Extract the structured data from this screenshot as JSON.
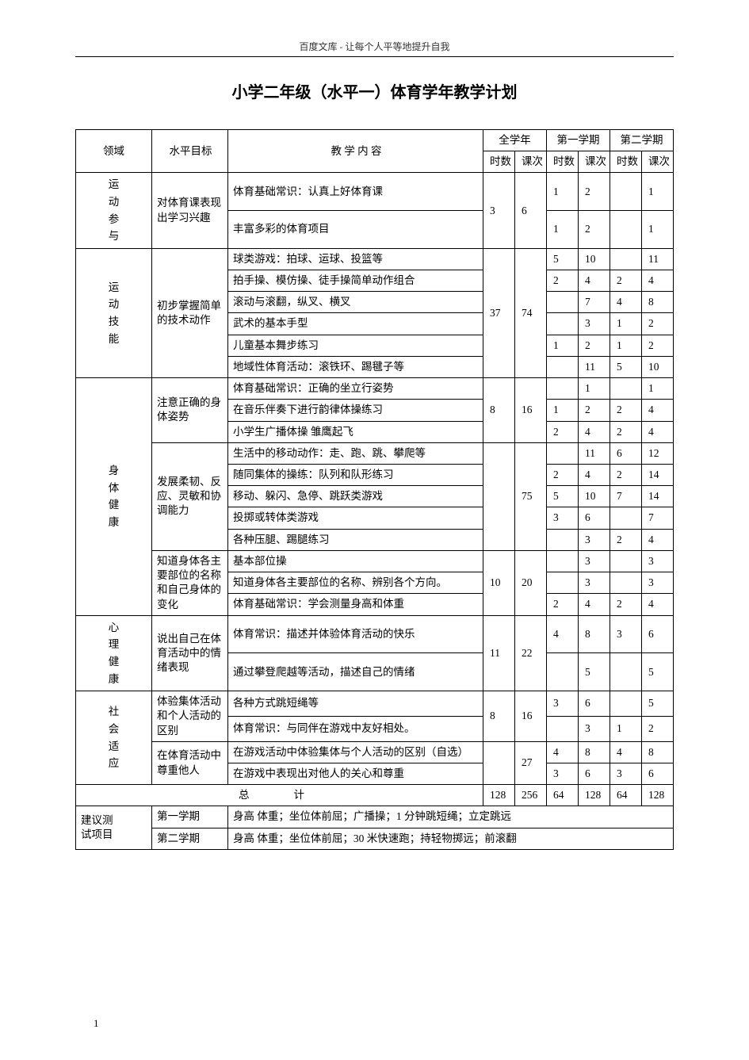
{
  "header": "百度文库 - 让每个人平等地提升自我",
  "title": "小学二年级（水平一）体育学年教学计划",
  "columns": {
    "domain": "领域",
    "goal": "水平目标",
    "content": "教 学 内 容",
    "full_year": "全学年",
    "sem1": "第一学期",
    "sem2": "第二学期",
    "hours": "时数",
    "lessons": "课次"
  },
  "sections": [
    {
      "domain": "运动参与",
      "goals": [
        {
          "goal": "对体育课表现出学习兴趣",
          "year": {
            "h": "3",
            "l": "6"
          },
          "rows": [
            {
              "content": "体育基础常识：认真上好体育课",
              "s1h": "1",
              "s1l": "2",
              "s2h": "",
              "s2l": "1"
            },
            {
              "content": "丰富多彩的体育项目",
              "s1h": "1",
              "s1l": "2",
              "s2h": "",
              "s2l": "1"
            }
          ]
        }
      ]
    },
    {
      "domain": "运动技能",
      "goals": [
        {
          "goal": "初步掌握简单的技术动作",
          "year": {
            "h": "37",
            "l": "74"
          },
          "rows": [
            {
              "content": "球类游戏：拍球、运球、投篮等",
              "s1h": "5",
              "s1l": "10",
              "s2h": "",
              "s2l": "11"
            },
            {
              "content": "拍手操、模仿操、徒手操简单动作组合",
              "s1h": "2",
              "s1l": "4",
              "s2h": "2",
              "s2l": "4"
            },
            {
              "content": "滚动与滚翻，纵叉、横叉",
              "s1h": "",
              "s1l": "7",
              "s2h": "4",
              "s2l": "8"
            },
            {
              "content": "武术的基本手型",
              "s1h": "",
              "s1l": "3",
              "s2h": "1",
              "s2l": "2"
            },
            {
              "content": "儿童基本舞步练习",
              "s1h": "1",
              "s1l": "2",
              "s2h": "1",
              "s2l": "2"
            },
            {
              "content": "地域性体育活动：滚铁环、踢毽子等",
              "s1h": "",
              "s1l": "11",
              "s2h": "5",
              "s2l": "10"
            }
          ]
        }
      ]
    },
    {
      "domain": "身体健康",
      "goals": [
        {
          "goal": "注意正确的身体姿势",
          "year": {
            "h": "8",
            "l": "16"
          },
          "rows": [
            {
              "content": "体育基础常识：正确的坐立行姿势",
              "s1h": "",
              "s1l": "1",
              "s2h": "",
              "s2l": "1"
            },
            {
              "content": "在音乐伴奏下进行韵律体操练习",
              "s1h": "1",
              "s1l": "2",
              "s2h": "2",
              "s2l": "4"
            },
            {
              "content": "小学生广播体操 雏鹰起飞",
              "s1h": "2",
              "s1l": "4",
              "s2h": "2",
              "s2l": "4"
            }
          ]
        },
        {
          "goal": "发展柔韧、反应、灵敏和协调能力",
          "year": {
            "h": "",
            "l": "75"
          },
          "rows": [
            {
              "content": "生活中的移动动作：走、跑、跳、攀爬等",
              "s1h": "",
              "s1l": "11",
              "s2h": "6",
              "s2l": "12"
            },
            {
              "content": "随同集体的操练：队列和队形练习",
              "s1h": "2",
              "s1l": "4",
              "s2h": "2",
              "s2l": "14"
            },
            {
              "content": "移动、躲闪、急停、跳跃类游戏",
              "s1h": "5",
              "s1l": "10",
              "s2h": "7",
              "s2l": "14"
            },
            {
              "content": "投掷或转体类游戏",
              "s1h": "3",
              "s1l": "6",
              "s2h": "",
              "s2l": "7"
            },
            {
              "content": "各种压腿、踢腿练习",
              "s1h": "",
              "s1l": "3",
              "s2h": "2",
              "s2l": "4"
            }
          ]
        },
        {
          "goal": "知道身体各主要部位的名称和自己身体的变化",
          "year": {
            "h": "10",
            "l": "20"
          },
          "rows": [
            {
              "content": "基本部位操",
              "s1h": "",
              "s1l": "3",
              "s2h": "",
              "s2l": "3"
            },
            {
              "content": "知道身体各主要部位的名称、辨别各个方向。",
              "s1h": "",
              "s1l": "3",
              "s2h": "",
              "s2l": "3"
            },
            {
              "content": "体育基础常识：学会测量身高和体重",
              "s1h": "2",
              "s1l": "4",
              "s2h": "2",
              "s2l": "4"
            }
          ]
        }
      ]
    },
    {
      "domain": "心理健康",
      "goals": [
        {
          "goal": "说出自己在体育活动中的情绪表现",
          "year": {
            "h": "11",
            "l": "22"
          },
          "rows": [
            {
              "content": "体育常识：描述并体验体育活动的快乐",
              "s1h": "4",
              "s1l": "8",
              "s2h": "3",
              "s2l": "6"
            },
            {
              "content": "通过攀登爬越等活动，描述自己的情绪",
              "s1h": "",
              "s1l": "5",
              "s2h": "",
              "s2l": "5"
            }
          ]
        }
      ]
    },
    {
      "domain": "社会适应",
      "goals": [
        {
          "goal": "体验集体活动和个人活动的区别",
          "year": {
            "h": "8",
            "l": "16"
          },
          "rows": [
            {
              "content": "各种方式跳短绳等",
              "s1h": "3",
              "s1l": "6",
              "s2h": "",
              "s2l": "5"
            },
            {
              "content": "体育常识：与同伴在游戏中友好相处。",
              "s1h": "",
              "s1l": "3",
              "s2h": "1",
              "s2l": "2"
            }
          ]
        },
        {
          "goal": "在体育活动中尊重他人",
          "year": {
            "h": "",
            "l": "27"
          },
          "rows": [
            {
              "content": "在游戏活动中体验集体与个人活动的区别（自选）",
              "s1h": "4",
              "s1l": "8",
              "s2h": "4",
              "s2l": "8"
            },
            {
              "content": "在游戏中表现出对他人的关心和尊重",
              "s1h": "3",
              "s1l": "6",
              "s2h": "3",
              "s2l": "6"
            }
          ]
        }
      ]
    }
  ],
  "totals": {
    "label_left": "总",
    "label_right": "计",
    "full_h": "128",
    "full_l": "256",
    "s1_h": "64",
    "s1_l": "128",
    "s2_h": "64",
    "s2_l": "128"
  },
  "suggestions": {
    "label": "建议测试项目",
    "rows": [
      {
        "sem": "第一学期",
        "text": "身高 体重；坐位体前屈；广播操；1 分钟跳短绳；立定跳远"
      },
      {
        "sem": "第二学期",
        "text": "身高 体重；坐位体前屈；30 米快速跑；持轻物掷远；前滚翻"
      }
    ]
  },
  "page_number": "1"
}
